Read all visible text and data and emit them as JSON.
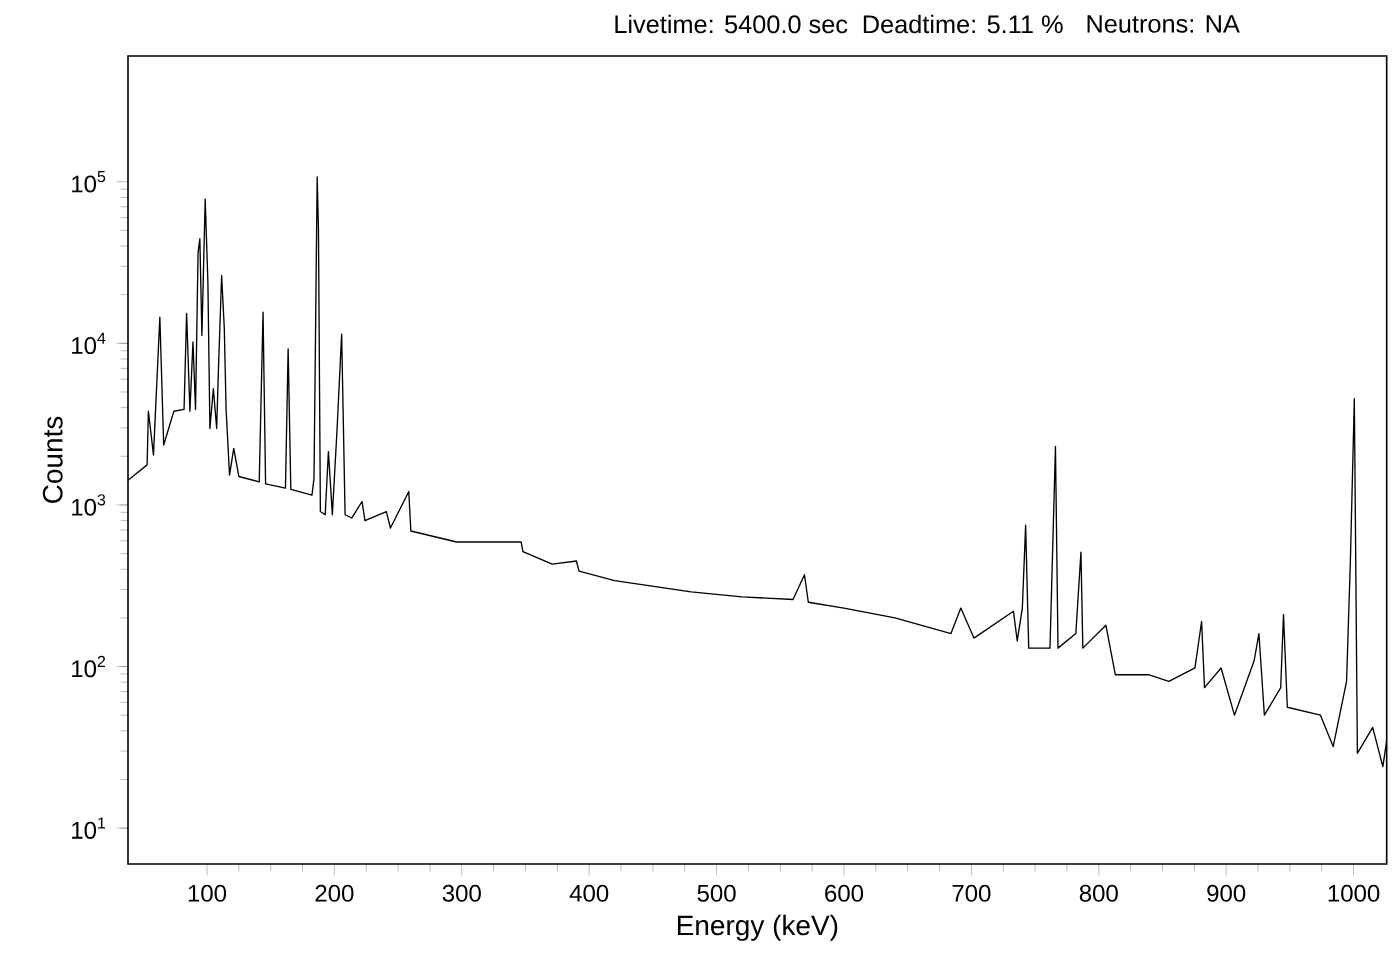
{
  "chart_data": {
    "type": "line",
    "xlabel": "Energy (keV)",
    "ylabel": "Counts",
    "log": "y",
    "color": "#000000",
    "annotations": [
      "Livetime: 5400.0 sec",
      "Deadtime: 5.11 %",
      "Neutrons: NA"
    ],
    "xlim": [
      38,
      1026
    ],
    "ylim": [
      6,
      600000
    ],
    "xticks": [
      100,
      200,
      300,
      400,
      500,
      600,
      700,
      800,
      900,
      1000
    ],
    "yticks": [
      {
        "value": 10,
        "label": "10$^{1}$"
      },
      {
        "value": 100,
        "label": "10$^{2}$"
      },
      {
        "value": 1000,
        "label": "10$^{3}$"
      },
      {
        "value": 10000,
        "label": "10$^{4}$"
      },
      {
        "value": 100000,
        "label": "10$^{5}$"
      }
    ],
    "x": [
      38,
      53,
      54,
      58,
      63,
      66,
      74,
      82,
      84,
      86.6,
      89,
      91,
      93,
      94.4,
      96,
      98.6,
      100.7,
      102.3,
      105,
      107.6,
      109,
      111.5,
      113.6,
      115,
      117.7,
      121,
      125,
      141,
      144,
      146,
      161.6,
      163.7,
      165.8,
      182.4,
      184,
      186.5,
      187.5,
      189,
      192.8,
      195.3,
      198.4,
      202,
      205.7,
      208.4,
      213.6,
      221.7,
      224,
      240.8,
      244,
      258.4,
      260,
      296,
      346.6,
      348,
      371,
      390,
      392,
      420,
      480,
      520,
      560,
      569,
      572,
      600,
      640,
      684,
      691.7,
      702,
      733,
      736,
      740,
      742.6,
      745,
      761.7,
      766,
      768,
      782,
      786,
      787.5,
      805.6,
      813,
      839,
      855,
      875.5,
      880.7,
      883,
      896,
      906.5,
      922,
      925.7,
      930,
      942.8,
      945,
      948,
      974,
      984,
      994.5,
      997.5,
      1000.6,
      1003,
      1015,
      1023,
      1026
    ],
    "values": [
      1420,
      1770,
      3800,
      2040,
      14500,
      2350,
      3800,
      3900,
      15300,
      3800,
      10200,
      3900,
      36600,
      44400,
      11200,
      78000,
      24000,
      2970,
      5240,
      2970,
      6960,
      26300,
      12300,
      3900,
      1530,
      2240,
      1500,
      1390,
      15600,
      1350,
      1270,
      9240,
      1250,
      1150,
      1460,
      107000,
      51000,
      910,
      870,
      2140,
      870,
      2840,
      11400,
      870,
      830,
      1050,
      800,
      910,
      720,
      1210,
      690,
      590,
      590,
      515,
      430,
      450,
      390,
      340,
      290,
      270,
      260,
      370,
      250,
      230,
      200,
      160,
      230,
      150,
      220,
      144,
      230,
      750,
      130,
      130,
      2300,
      130,
      160,
      510,
      130,
      180,
      89,
      89,
      81,
      98,
      190,
      74,
      98,
      50,
      109,
      160,
      50,
      74,
      210,
      56,
      50,
      32,
      81,
      450,
      4550,
      29,
      42,
      24,
      35
    ]
  }
}
